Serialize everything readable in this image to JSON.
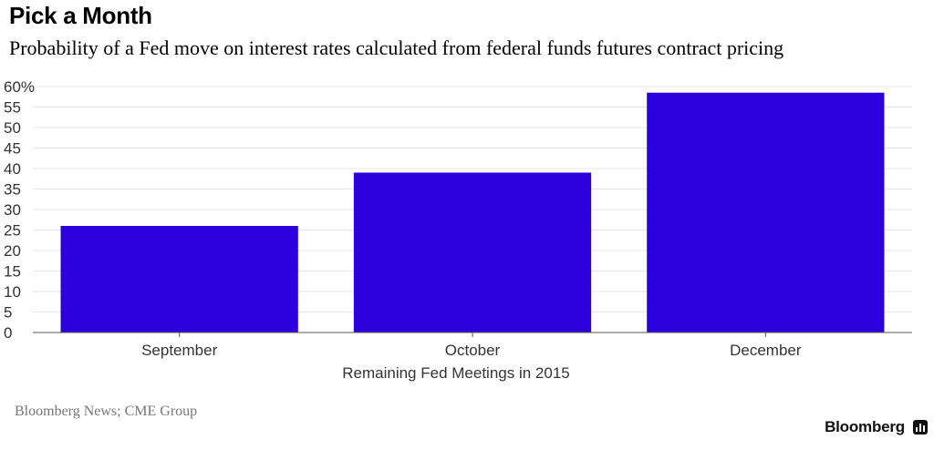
{
  "title": "Pick a Month",
  "subtitle": "Probability of a Fed move on interest rates calculated from federal funds futures contract pricing",
  "source": "Bloomberg News; CME Group",
  "brand": "Bloomberg",
  "brand_icon": "bloomberg-chart-icon",
  "colors": {
    "bar": "#2b00dc",
    "grid": "#e6e6e6",
    "axis": "#555555",
    "text": "#333333"
  },
  "chart_data": {
    "type": "bar",
    "categories": [
      "September",
      "October",
      "December"
    ],
    "values": [
      26,
      39,
      58.5
    ],
    "xlabel": "Remaining Fed Meetings in 2015",
    "ylabel": "",
    "ylim": [
      0,
      60
    ],
    "yticks": [
      0,
      5,
      10,
      15,
      20,
      25,
      30,
      35,
      40,
      45,
      50,
      55,
      60
    ],
    "ytick_labels": [
      "0",
      "5",
      "10",
      "15",
      "20",
      "25",
      "30",
      "35",
      "40",
      "45",
      "50",
      "55",
      "60%"
    ],
    "grid": true,
    "legend": "none"
  }
}
